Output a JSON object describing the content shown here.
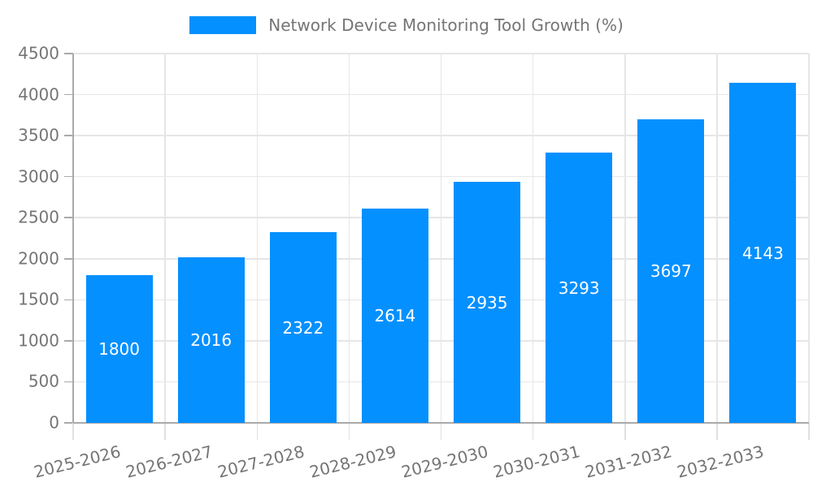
{
  "chart_data": {
    "type": "bar",
    "title": "Network Device Monitoring Tool Growth (%)",
    "categories": [
      "2025-2026",
      "2026-2027",
      "2027-2028",
      "2028-2029",
      "2029-2030",
      "2030-2031",
      "2031-2032",
      "2032-2033"
    ],
    "values": [
      1800,
      2016,
      2322,
      2614,
      2935,
      3293,
      3697,
      4143
    ],
    "xlabel": "",
    "ylabel": "",
    "ylim": [
      0,
      4500
    ],
    "yticks": [
      0,
      500,
      1000,
      1500,
      2000,
      2500,
      3000,
      3500,
      4000,
      4500
    ],
    "grid": true,
    "legend_position": "top-center",
    "bar_label_position": "center",
    "x_tick_rotation_deg": -14,
    "colors": {
      "bar": "#0590ff",
      "bar_value_text": "#ffffff",
      "axis_text": "#757575",
      "gridline": "#e6e6e6",
      "axis_line": "#aaaaaa",
      "x_tick_mark": "#e0e0e0",
      "background": "#ffffff"
    }
  }
}
